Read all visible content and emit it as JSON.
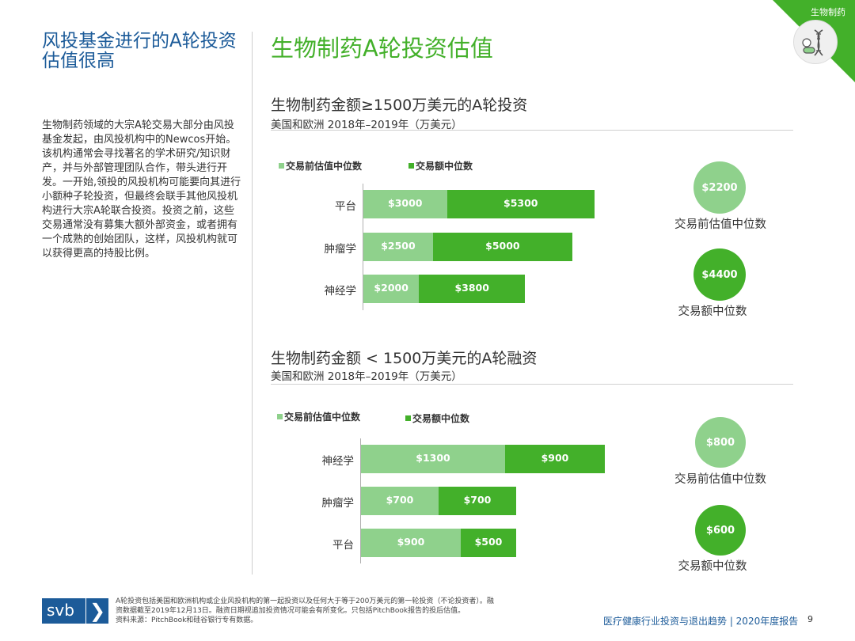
{
  "corner": {
    "label": "生物制药"
  },
  "left": {
    "title": "风投基金进行的A轮投资估值很高",
    "body": "生物制药领域的大宗A轮交易大部分由风投基金发起，由风投机构中的Newcos开始。该机构通常会寻找著名的学术研究/知识财产，并与外部管理团队合作，带头进行开发。一开始,领投的风投机构可能要向其进行小额种子轮投资，但最终会联手其他风投机构进行大宗A轮联合投资。投资之前，这些交易通常没有募集大额外部资金，或者拥有一个成熟的创始团队，这样，风投机构就可以获得更高的持股比例。"
  },
  "main_title": "生物制药A轮投资估值",
  "colors": {
    "light": "#8fd18c",
    "dark": "#43b02a",
    "brand": "#1c5b99"
  },
  "chart_data": [
    {
      "type": "bar",
      "orientation": "horizontal",
      "stacked": true,
      "title": "生物制药金额≥1500万美元的A轮投资",
      "subtitle": "美国和欧洲 2018年–2019年（万美元）",
      "legend": [
        "交易前估值中位数",
        "交易额中位数"
      ],
      "categories": [
        "平台",
        "肿瘤学",
        "神经学"
      ],
      "series": [
        {
          "name": "交易前估值中位数",
          "values": [
            3000,
            2500,
            2000
          ],
          "labels": [
            "$3000",
            "$2500",
            "$2000"
          ]
        },
        {
          "name": "交易额中位数",
          "values": [
            5300,
            5000,
            3800
          ],
          "labels": [
            "$5300",
            "$5000",
            "$3800"
          ]
        }
      ],
      "summary": [
        {
          "value": "$2200",
          "caption": "交易前估值中位数"
        },
        {
          "value": "$4400",
          "caption": "交易额中位数"
        }
      ]
    },
    {
      "type": "bar",
      "orientation": "horizontal",
      "stacked": true,
      "title": "生物制药金额 < 1500万美元的A轮融资",
      "subtitle": "美国和欧洲 2018年–2019年（万美元）",
      "legend": [
        "交易前估值中位数",
        "交易额中位数"
      ],
      "categories": [
        "神经学",
        "肿瘤学",
        "平台"
      ],
      "series": [
        {
          "name": "交易前估值中位数",
          "values": [
            1300,
            700,
            900
          ],
          "labels": [
            "$1300",
            "$700",
            "$900"
          ]
        },
        {
          "name": "交易额中位数",
          "values": [
            900,
            700,
            500
          ],
          "labels": [
            "$900",
            "$700",
            "$500"
          ]
        }
      ],
      "summary": [
        {
          "value": "$800",
          "caption": "交易前估值中位数"
        },
        {
          "value": "$600",
          "caption": "交易额中位数"
        }
      ]
    }
  ],
  "footer": {
    "logo": "svb",
    "note_line1": "A轮投资包括美国和欧洲机构或企业风投机构的第一起投资以及任何大于等于200万美元的第一轮投资（不论投资者）。融",
    "note_line2": "资数据截至2019年12月13日。融资日期视追加投资情况可能会有所变化。只包括PitchBook报告的投后估值。",
    "note_line3": "资料来源：PitchBook和硅谷银行专有数据。",
    "report": "医疗健康行业投资与退出趋势 | 2020年度报告",
    "page": "9"
  }
}
